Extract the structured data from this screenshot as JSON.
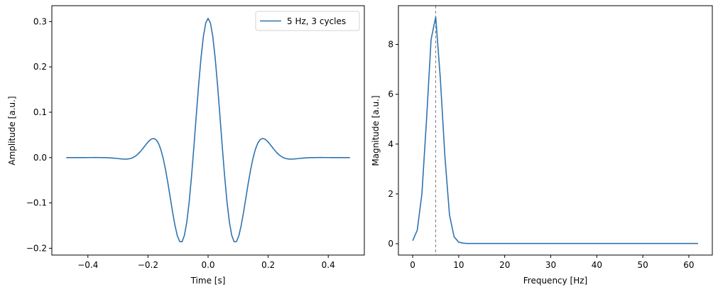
{
  "chart_data": [
    {
      "type": "line",
      "title": "",
      "xlabel": "Time [s]",
      "ylabel": "Amplitude [a.u.]",
      "xlim": [
        -0.52,
        0.52
      ],
      "ylim": [
        -0.215,
        0.335
      ],
      "xticks": [
        -0.4,
        -0.2,
        0.0,
        0.2,
        0.4
      ],
      "xtick_labels": [
        "−0.4",
        "−0.2",
        "0.0",
        "0.2",
        "0.4"
      ],
      "yticks": [
        -0.2,
        -0.1,
        0.0,
        0.1,
        0.2,
        0.3
      ],
      "ytick_labels": [
        "−0.2",
        "−0.1",
        "0.0",
        "0.1",
        "0.2",
        "0.3"
      ],
      "grid": false,
      "legend": {
        "position": "top-right",
        "entries": [
          "5 Hz, 3 cycles"
        ]
      },
      "series": [
        {
          "name": "5 Hz, 3 cycles",
          "color": "#2f74b0",
          "wavelet": {
            "frequency_hz": 5,
            "cycles": 3,
            "peak_amplitude": 0.307,
            "t_start": -0.472,
            "t_end": 0.472,
            "n_points": 121
          }
        }
      ]
    },
    {
      "type": "line",
      "title": "",
      "xlabel": "Frequency [Hz]",
      "ylabel": "Magnitude [a.u.]",
      "xlim": [
        -3.1,
        65.1
      ],
      "ylim": [
        -0.455,
        9.555
      ],
      "xticks": [
        0,
        10,
        20,
        30,
        40,
        50,
        60
      ],
      "xtick_labels": [
        "0",
        "10",
        "20",
        "30",
        "40",
        "50",
        "60"
      ],
      "yticks": [
        0,
        2,
        4,
        6,
        8
      ],
      "ytick_labels": [
        "0",
        "2",
        "4",
        "6",
        "8"
      ],
      "grid": false,
      "reference_line": {
        "x": 5,
        "style": "dashed",
        "color": "#808080"
      },
      "series": [
        {
          "color": "#2f74b0",
          "x": [
            0,
            1,
            2,
            3,
            4,
            5,
            6,
            7,
            8,
            9,
            10,
            11,
            12,
            13,
            14,
            15,
            16,
            20,
            25,
            30,
            35,
            40,
            45,
            50,
            55,
            60,
            62
          ],
          "y": [
            0.12,
            0.55,
            2.0,
            4.95,
            8.2,
            9.1,
            6.65,
            3.5,
            1.15,
            0.28,
            0.06,
            0.02,
            0.01,
            0.01,
            0.01,
            0.01,
            0.01,
            0.01,
            0.01,
            0.01,
            0.01,
            0.01,
            0.01,
            0.01,
            0.01,
            0.01,
            0.01
          ]
        }
      ]
    }
  ]
}
